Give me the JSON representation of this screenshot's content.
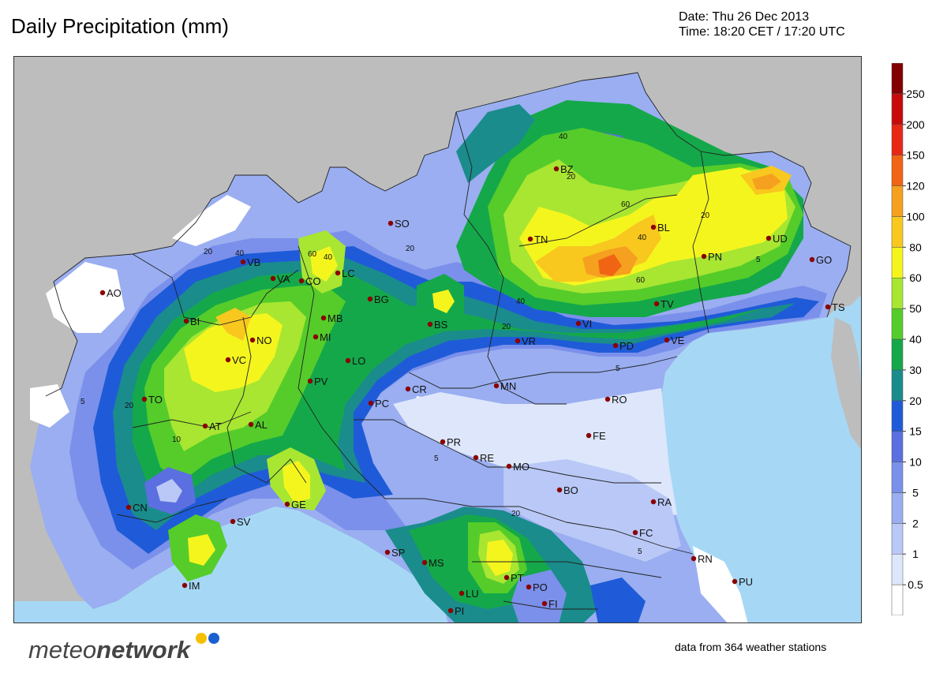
{
  "header": {
    "title": "Daily Precipitation (mm)",
    "date_line": "Date: Thu 26 Dec 2013",
    "time_line": "Time: 18:20 CET / 17:20 UTC"
  },
  "legend": {
    "levels": [
      "0.5",
      "1",
      "2",
      "5",
      "10",
      "15",
      "20",
      "30",
      "40",
      "50",
      "60",
      "80",
      "100",
      "120",
      "150",
      "200",
      "250"
    ],
    "colors": [
      "#ffffff",
      "#dde6fb",
      "#b9c8f6",
      "#9aaef1",
      "#7b90ea",
      "#5c6fe0",
      "#1f5bd8",
      "#1a8c8c",
      "#15a84a",
      "#55cc2a",
      "#a8e632",
      "#f5f51e",
      "#f8c81e",
      "#f5a01e",
      "#f06414",
      "#e62814",
      "#c80a0a",
      "#820000"
    ]
  },
  "stations": [
    {
      "code": "AO"
    },
    {
      "code": "VB"
    },
    {
      "code": "VA"
    },
    {
      "code": "CO"
    },
    {
      "code": "LC"
    },
    {
      "code": "SO"
    },
    {
      "code": "BZ"
    },
    {
      "code": "BL"
    },
    {
      "code": "UD"
    },
    {
      "code": "PN"
    },
    {
      "code": "GO"
    },
    {
      "code": "TS"
    },
    {
      "code": "TN"
    },
    {
      "code": "BI"
    },
    {
      "code": "NO"
    },
    {
      "code": "MB"
    },
    {
      "code": "MI"
    },
    {
      "code": "BG"
    },
    {
      "code": "BS"
    },
    {
      "code": "VR"
    },
    {
      "code": "VI"
    },
    {
      "code": "TV"
    },
    {
      "code": "PD"
    },
    {
      "code": "VE"
    },
    {
      "code": "VC"
    },
    {
      "code": "LO"
    },
    {
      "code": "PV"
    },
    {
      "code": "CR"
    },
    {
      "code": "PC"
    },
    {
      "code": "MN"
    },
    {
      "code": "RO"
    },
    {
      "code": "TO"
    },
    {
      "code": "AT"
    },
    {
      "code": "AL"
    },
    {
      "code": "PR"
    },
    {
      "code": "RE"
    },
    {
      "code": "MO"
    },
    {
      "code": "FE"
    },
    {
      "code": "BO"
    },
    {
      "code": "CN"
    },
    {
      "code": "GE"
    },
    {
      "code": "SV"
    },
    {
      "code": "RA"
    },
    {
      "code": "FC"
    },
    {
      "code": "RN"
    },
    {
      "code": "PU"
    },
    {
      "code": "SP"
    },
    {
      "code": "MS"
    },
    {
      "code": "PT"
    },
    {
      "code": "PO"
    },
    {
      "code": "LU"
    },
    {
      "code": "FI"
    },
    {
      "code": "PI"
    },
    {
      "code": "IM"
    }
  ],
  "contour_labels": [
    "40",
    "20",
    "60",
    "40",
    "20",
    "5",
    "20",
    "40",
    "60",
    "40",
    "20",
    "5",
    "20",
    "5",
    "20",
    "10",
    "5",
    "60",
    "40",
    "20",
    "5"
  ],
  "footer": {
    "logo_text_prefix": "meteo",
    "logo_text_suffix": "network",
    "stations_note": "data from 364 weather stations"
  },
  "colors": {
    "sea": "#a6d8f5",
    "land_outside": "#bdbdbd",
    "station_dot": "#8b0000",
    "logo_gray": "#444444",
    "logo_yellow": "#f6c000",
    "logo_blue": "#1b5fd0"
  }
}
